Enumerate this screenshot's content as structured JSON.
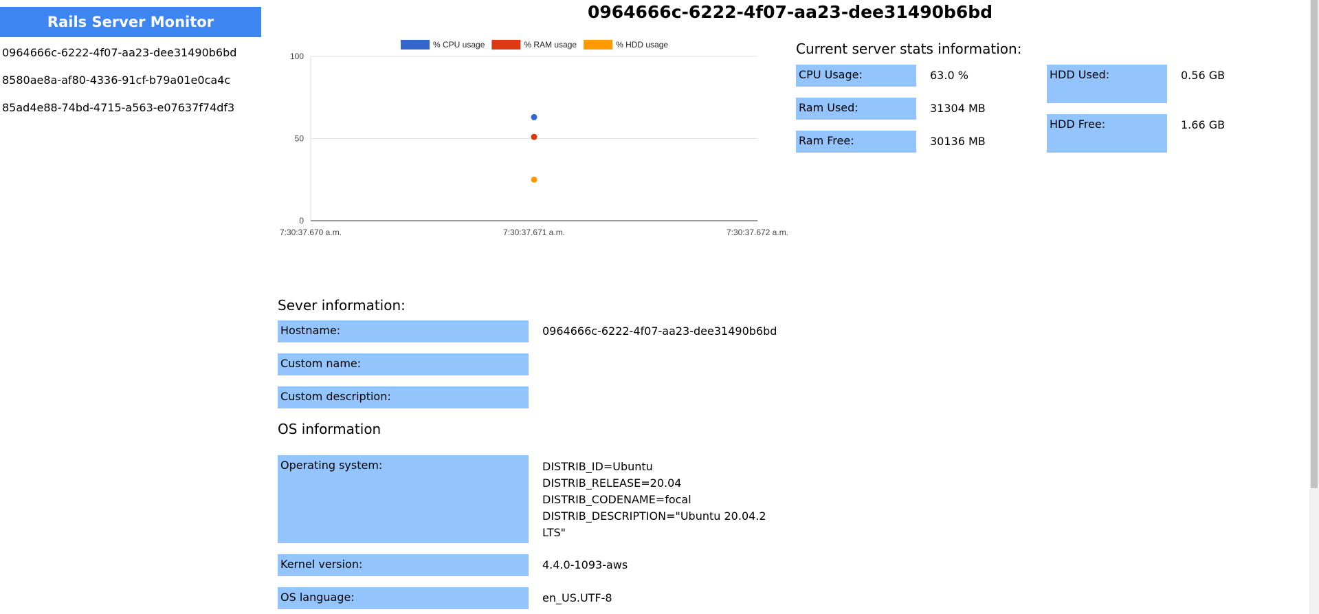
{
  "sidebar": {
    "brand": "Rails Server Monitor",
    "servers": [
      "0964666c-6222-4f07-aa23-dee31490b6bd",
      "8580ae8a-af80-4336-91cf-b79a01e0ca4c",
      "85ad4e88-74bd-4715-a563-e07637f74df3"
    ]
  },
  "page_title": "0964666c-6222-4f07-aa23-dee31490b6bd",
  "chart_data": {
    "type": "scatter",
    "x": [
      "7:30:37.670 a.m.",
      "7:30:37.671 a.m.",
      "7:30:37.672 a.m."
    ],
    "y_ticks": [
      "0",
      "50",
      "100"
    ],
    "ylim": [
      0,
      100
    ],
    "legend_position": "top",
    "series": [
      {
        "name": "% CPU usage",
        "color": "#3366cc",
        "points": [
          {
            "x": "7:30:37.671 a.m.",
            "y": 63
          }
        ]
      },
      {
        "name": "% RAM usage",
        "color": "#dc3912",
        "points": [
          {
            "x": "7:30:37.671 a.m.",
            "y": 51
          }
        ]
      },
      {
        "name": "% HDD usage",
        "color": "#ff9900",
        "points": [
          {
            "x": "7:30:37.671 a.m.",
            "y": 25
          }
        ]
      }
    ]
  },
  "stats": {
    "heading": "Current server stats information:",
    "cpu_label": "CPU Usage:",
    "cpu_value": "63.0 %",
    "ram_used_label": "Ram Used:",
    "ram_used_value": "31304 MB",
    "ram_free_label": "Ram Free:",
    "ram_free_value": "30136 MB",
    "hdd_used_label": "HDD Used:",
    "hdd_used_value": "0.56 GB",
    "hdd_free_label": "HDD Free:",
    "hdd_free_value": "1.66 GB"
  },
  "server_info": {
    "heading": "Sever information:",
    "hostname_label": "Hostname:",
    "hostname_value": "0964666c-6222-4f07-aa23-dee31490b6bd",
    "custom_name_label": "Custom name:",
    "custom_description_label": "Custom description:"
  },
  "os_info": {
    "heading": "OS information",
    "os_label": "Operating system:",
    "os_lines": [
      "DISTRIB_ID=Ubuntu",
      "DISTRIB_RELEASE=20.04",
      "DISTRIB_CODENAME=focal",
      "DISTRIB_DESCRIPTION=\"Ubuntu 20.04.2",
      "LTS\""
    ],
    "kernel_label": "Kernel version:",
    "kernel_value": "4.4.0-1093-aws",
    "language_label": "OS language:",
    "language_value": "en_US.UTF-8"
  }
}
